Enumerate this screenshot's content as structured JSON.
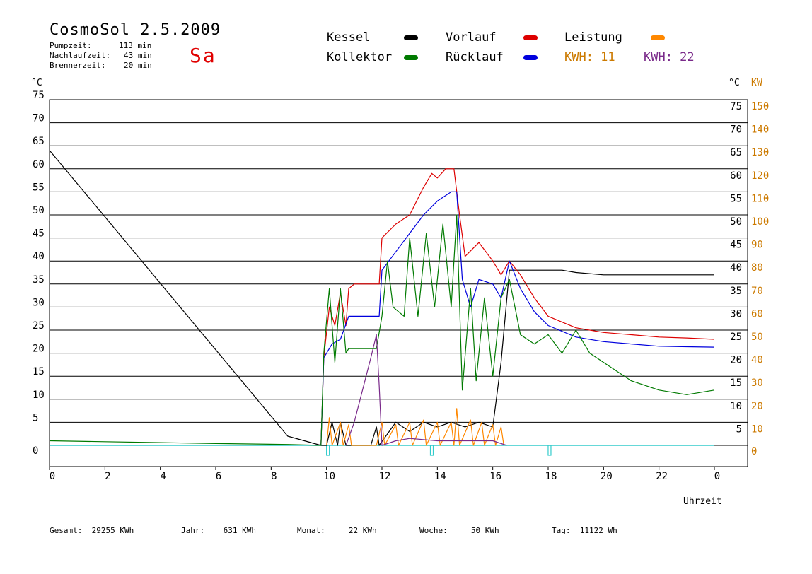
{
  "header": {
    "title": "CosmoSol 2.5.2009",
    "day": "Sa",
    "stats": [
      {
        "label": "Pumpzeit:",
        "value": "113 min"
      },
      {
        "label": "Nachlaufzeit:",
        "value": "43 min"
      },
      {
        "label": "Brennerzeit:",
        "value": "20 min"
      }
    ]
  },
  "legend": {
    "kessel": "Kessel",
    "kollektor": "Kollektor",
    "vorlauf": "Vorlauf",
    "ruecklauf": "Rücklauf",
    "leistung": "Leistung",
    "kwh1": "KWH: 11",
    "kwh2": "KWH: 22"
  },
  "colors": {
    "kessel": "#000000",
    "kollektor": "#007a00",
    "vorlauf": "#dd0000",
    "ruecklauf": "#0000dd",
    "leistung": "#ff8800",
    "kwh2": "#7a2a8a",
    "pump": "#33cccc",
    "axis_right_kw": "#cc7a00"
  },
  "axes": {
    "left_unit": "°C",
    "right_unit_c": "°C",
    "right_unit_kw": "KW",
    "x_label": "Uhrzeit"
  },
  "footer": {
    "gesamt": "Gesamt:  29255 KWh",
    "jahr": "Jahr:    631 KWh",
    "monat": "Monat:     22 KWh",
    "woche": "Woche:     50 KWh",
    "tag": "Tag:  11122 Wh"
  },
  "chart_data": {
    "type": "line",
    "title": "CosmoSol 2.5.2009",
    "xlabel": "Uhrzeit",
    "ylabel": "°C",
    "xlim": [
      0,
      24
    ],
    "ylim": [
      0,
      75
    ],
    "y2lim": [
      0,
      150
    ],
    "y2label": "KW",
    "x_ticks": [
      "0",
      "2",
      "4",
      "6",
      "8",
      "10",
      "12",
      "14",
      "16",
      "18",
      "20",
      "22",
      "0"
    ],
    "y_ticks": [
      0,
      5,
      10,
      15,
      20,
      25,
      30,
      35,
      40,
      45,
      50,
      55,
      60,
      65,
      70,
      75
    ],
    "y2_ticks": [
      0,
      10,
      20,
      30,
      40,
      50,
      60,
      70,
      80,
      90,
      100,
      110,
      120,
      130,
      140,
      150
    ],
    "right_c_ticks": [
      5,
      10,
      15,
      20,
      25,
      30,
      35,
      40,
      45,
      50,
      55,
      60,
      65,
      70,
      75
    ],
    "series": [
      {
        "name": "Kessel",
        "color_key": "kessel",
        "points": [
          [
            0,
            64
          ],
          [
            8.6,
            2
          ],
          [
            9.8,
            0
          ],
          [
            9.9,
            0
          ],
          [
            10.0,
            0
          ],
          [
            10.2,
            5
          ],
          [
            10.4,
            0
          ],
          [
            10.5,
            5
          ],
          [
            10.7,
            0
          ],
          [
            11.6,
            0
          ],
          [
            11.8,
            4
          ],
          [
            11.9,
            0
          ],
          [
            12.5,
            5
          ],
          [
            13,
            3
          ],
          [
            13.5,
            5
          ],
          [
            14,
            4
          ],
          [
            14.5,
            5
          ],
          [
            15,
            4
          ],
          [
            15.5,
            5
          ],
          [
            16,
            4
          ],
          [
            16.3,
            18
          ],
          [
            16.6,
            38
          ],
          [
            17.5,
            38
          ],
          [
            18.5,
            38
          ],
          [
            19,
            37.5
          ],
          [
            20,
            37
          ],
          [
            21,
            37
          ],
          [
            22,
            37
          ],
          [
            23,
            37
          ],
          [
            24,
            37
          ]
        ]
      },
      {
        "name": "Vorlauf",
        "color_key": "vorlauf",
        "points": [
          [
            9.8,
            0
          ],
          [
            9.9,
            19
          ],
          [
            10.1,
            30
          ],
          [
            10.3,
            26
          ],
          [
            10.5,
            33
          ],
          [
            10.7,
            26
          ],
          [
            10.8,
            34
          ],
          [
            11,
            35
          ],
          [
            11.9,
            35
          ],
          [
            12,
            45
          ],
          [
            12.5,
            48
          ],
          [
            13,
            50
          ],
          [
            13.5,
            56
          ],
          [
            13.8,
            59
          ],
          [
            14,
            58
          ],
          [
            14.3,
            60
          ],
          [
            14.6,
            60
          ],
          [
            14.8,
            50
          ],
          [
            15,
            41
          ],
          [
            15.5,
            44
          ],
          [
            16,
            40
          ],
          [
            16.3,
            37
          ],
          [
            16.6,
            40
          ],
          [
            17,
            37
          ],
          [
            17.5,
            32
          ],
          [
            18,
            28
          ],
          [
            19,
            25.5
          ],
          [
            20,
            24.5
          ],
          [
            21,
            24
          ],
          [
            22,
            23.5
          ],
          [
            23,
            23.3
          ],
          [
            24,
            23
          ]
        ]
      },
      {
        "name": "Rücklauf",
        "color_key": "ruecklauf",
        "points": [
          [
            9.8,
            0
          ],
          [
            9.9,
            19
          ],
          [
            10.2,
            22
          ],
          [
            10.5,
            23
          ],
          [
            10.8,
            28
          ],
          [
            11,
            28
          ],
          [
            11.9,
            28
          ],
          [
            12,
            38
          ],
          [
            12.5,
            42
          ],
          [
            13,
            46
          ],
          [
            13.5,
            50
          ],
          [
            14,
            53
          ],
          [
            14.5,
            55
          ],
          [
            14.7,
            55
          ],
          [
            14.9,
            36
          ],
          [
            15.2,
            30
          ],
          [
            15.5,
            36
          ],
          [
            16,
            35
          ],
          [
            16.3,
            32
          ],
          [
            16.6,
            40
          ],
          [
            17,
            34
          ],
          [
            17.5,
            29
          ],
          [
            18,
            26
          ],
          [
            19,
            23.5
          ],
          [
            20,
            22.5
          ],
          [
            21,
            22
          ],
          [
            22,
            21.5
          ],
          [
            23,
            21.4
          ],
          [
            24,
            21.3
          ]
        ]
      },
      {
        "name": "Kollektor",
        "color_key": "kollektor",
        "points": [
          [
            0,
            1
          ],
          [
            2,
            0.8
          ],
          [
            4,
            0.6
          ],
          [
            6,
            0.4
          ],
          [
            8.6,
            0.2
          ],
          [
            9.8,
            0
          ],
          [
            9.9,
            20
          ],
          [
            10.1,
            34
          ],
          [
            10.3,
            18
          ],
          [
            10.5,
            34
          ],
          [
            10.7,
            20
          ],
          [
            10.8,
            21
          ],
          [
            11.8,
            21
          ],
          [
            12,
            28
          ],
          [
            12.2,
            40
          ],
          [
            12.4,
            30
          ],
          [
            12.8,
            28
          ],
          [
            13,
            45
          ],
          [
            13.3,
            28
          ],
          [
            13.6,
            46
          ],
          [
            13.9,
            30
          ],
          [
            14.2,
            48
          ],
          [
            14.5,
            30
          ],
          [
            14.7,
            50
          ],
          [
            14.9,
            12
          ],
          [
            15.2,
            34
          ],
          [
            15.4,
            14
          ],
          [
            15.7,
            32
          ],
          [
            16,
            15
          ],
          [
            16.3,
            32
          ],
          [
            16.6,
            36
          ],
          [
            17,
            24
          ],
          [
            17.5,
            22
          ],
          [
            18,
            24
          ],
          [
            18.5,
            20
          ],
          [
            19,
            25
          ],
          [
            19.5,
            20
          ],
          [
            20,
            18
          ],
          [
            21,
            14
          ],
          [
            22,
            12
          ],
          [
            23,
            11
          ],
          [
            24,
            12
          ]
        ]
      },
      {
        "name": "Leistung",
        "color_key": "leistung",
        "axis": "right_kw",
        "points": [
          [
            10,
            0
          ],
          [
            10.1,
            12
          ],
          [
            10.2,
            0
          ],
          [
            10.5,
            10
          ],
          [
            10.6,
            0
          ],
          [
            10.8,
            9
          ],
          [
            10.9,
            0
          ],
          [
            11.8,
            0
          ],
          [
            12,
            10
          ],
          [
            12.1,
            0
          ],
          [
            12.5,
            9
          ],
          [
            12.6,
            0
          ],
          [
            13,
            10
          ],
          [
            13.1,
            0
          ],
          [
            13.5,
            11
          ],
          [
            13.6,
            0
          ],
          [
            14,
            10
          ],
          [
            14.1,
            0
          ],
          [
            14.5,
            10
          ],
          [
            14.6,
            0
          ],
          [
            14.7,
            16
          ],
          [
            14.8,
            0
          ],
          [
            15.2,
            11
          ],
          [
            15.3,
            0
          ],
          [
            15.6,
            10
          ],
          [
            15.7,
            0
          ],
          [
            16,
            9
          ],
          [
            16.1,
            0
          ],
          [
            16.3,
            8
          ],
          [
            16.4,
            0
          ]
        ]
      },
      {
        "name": "KWH: 22",
        "color_key": "kwh2",
        "axis": "right_kw",
        "points": [
          [
            10.7,
            0
          ],
          [
            11,
            10
          ],
          [
            11.6,
            38
          ],
          [
            11.8,
            48
          ],
          [
            11.9,
            26
          ],
          [
            12,
            0
          ],
          [
            12.5,
            2
          ],
          [
            13,
            3
          ],
          [
            14,
            2
          ],
          [
            15,
            2
          ],
          [
            16,
            2
          ],
          [
            16.5,
            0
          ]
        ]
      }
    ]
  }
}
